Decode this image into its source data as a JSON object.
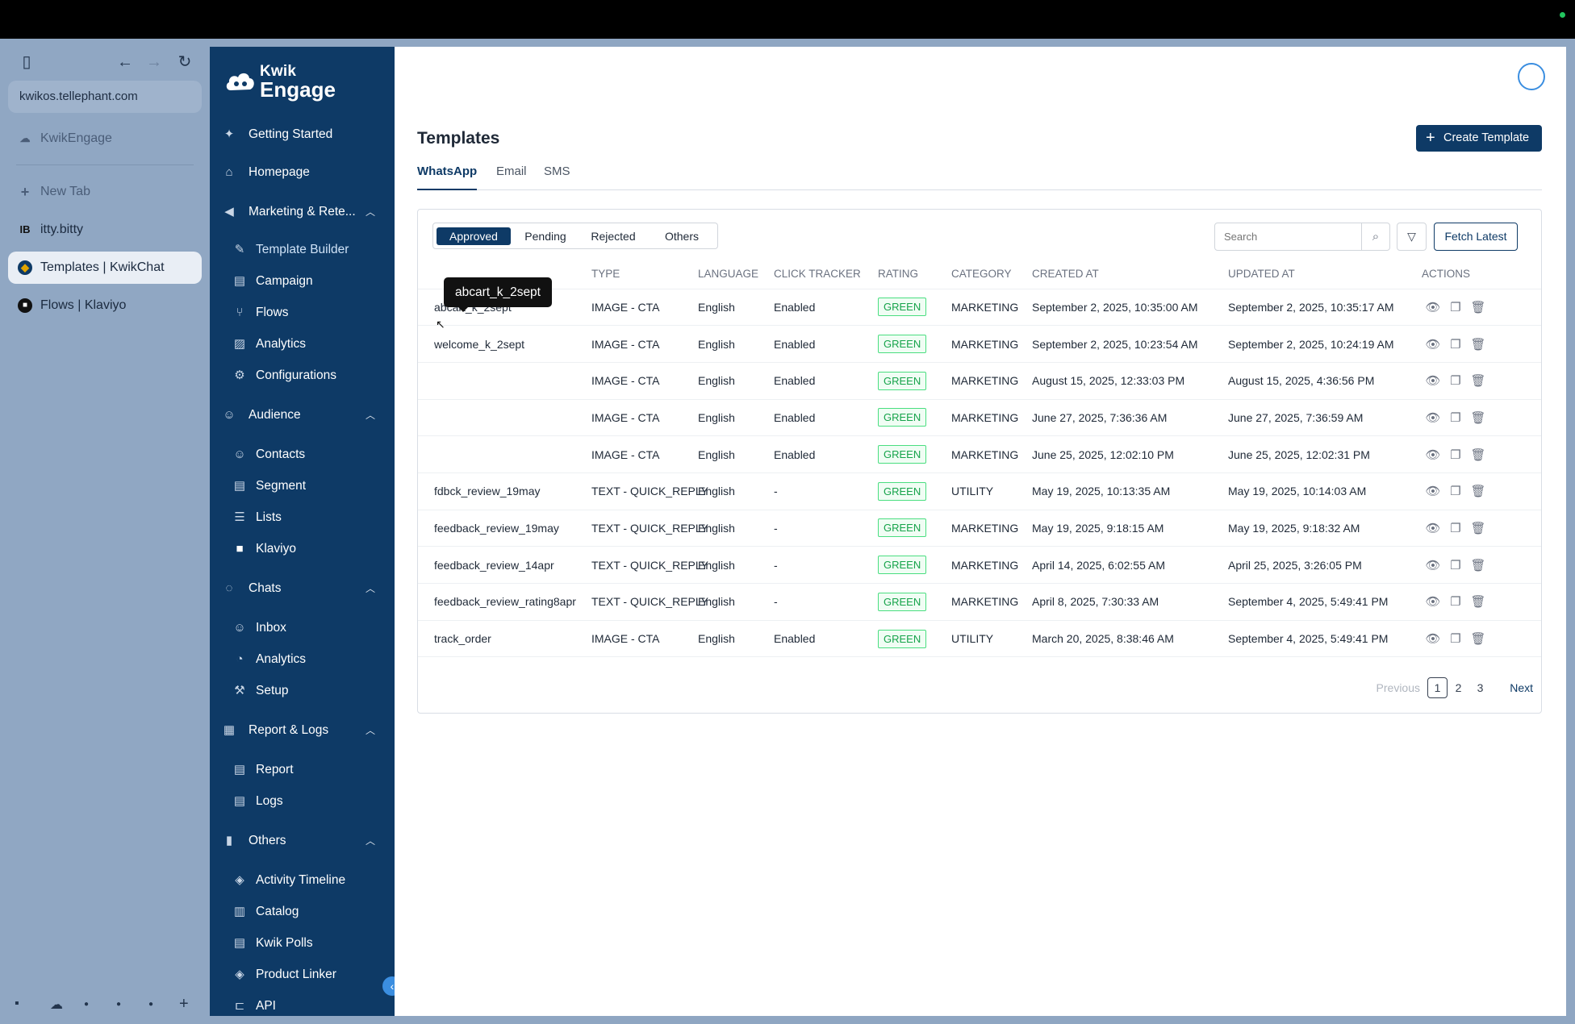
{
  "browser": {
    "url": "kwikos.tellephant.com",
    "pinned_tab": "KwikEngage",
    "new_tab": "New Tab",
    "tabs": [
      {
        "label": "itty.bitty"
      },
      {
        "label": "Templates | KwikChat"
      },
      {
        "label": "Flows | Klaviyo"
      }
    ]
  },
  "nav": {
    "logo_line1": "Kwik",
    "logo_line2": "Engage",
    "items": [
      {
        "label": "Getting Started",
        "icon": "rocket-icon"
      },
      {
        "label": "Homepage",
        "icon": "home-icon"
      },
      {
        "label": "Marketing & Rete...",
        "icon": "megaphone-icon"
      },
      {
        "label": "Template Builder",
        "icon": "brush-icon"
      },
      {
        "label": "Campaign",
        "icon": "document-icon"
      },
      {
        "label": "Flows",
        "icon": "flow-icon"
      },
      {
        "label": "Analytics",
        "icon": "chart-icon"
      },
      {
        "label": "Configurations",
        "icon": "settings-icon"
      },
      {
        "label": "Audience",
        "icon": "users-icon"
      },
      {
        "label": "Contacts",
        "icon": "user-icon"
      },
      {
        "label": "Segment",
        "icon": "document-icon"
      },
      {
        "label": "Lists",
        "icon": "list-icon"
      },
      {
        "label": "Klaviyo",
        "icon": "klaviyo-icon"
      },
      {
        "label": "Chats",
        "icon": "chat-icon"
      },
      {
        "label": "Inbox",
        "icon": "user-icon"
      },
      {
        "label": "Analytics",
        "icon": "pie-icon"
      },
      {
        "label": "Setup",
        "icon": "wrench-icon"
      },
      {
        "label": "Report & Logs",
        "icon": "building-icon"
      },
      {
        "label": "Report",
        "icon": "document-icon"
      },
      {
        "label": "Logs",
        "icon": "document-icon"
      },
      {
        "label": "Others",
        "icon": "bar-chart-icon"
      },
      {
        "label": "Activity Timeline",
        "icon": "tag-icon"
      },
      {
        "label": "Catalog",
        "icon": "book-icon"
      },
      {
        "label": "Kwik Polls",
        "icon": "document-icon"
      },
      {
        "label": "Product Linker",
        "icon": "tag-icon"
      },
      {
        "label": "API",
        "icon": "api-icon"
      }
    ]
  },
  "page": {
    "title": "Templates",
    "create_button": "Create Template",
    "tabs": [
      "WhatsApp",
      "Email",
      "SMS"
    ],
    "status_filters": [
      "Approved",
      "Pending",
      "Rejected",
      "Others"
    ],
    "search_placeholder": "Search",
    "fetch_button": "Fetch Latest",
    "tooltip": "abcart_k_2sept",
    "columns": [
      "",
      "TYPE",
      "LANGUAGE",
      "CLICK TRACKER",
      "RATING",
      "CATEGORY",
      "CREATED AT",
      "UPDATED AT",
      "ACTIONS"
    ],
    "rows": [
      {
        "name": "abcart_k_2sept",
        "type": "IMAGE - CTA",
        "language": "English",
        "tracker": "Enabled",
        "rating": "GREEN",
        "category": "MARKETING",
        "created": "September 2, 2025, 10:35:00 AM",
        "updated": "September 2, 2025, 10:35:17 AM"
      },
      {
        "name": "welcome_k_2sept",
        "type": "IMAGE - CTA",
        "language": "English",
        "tracker": "Enabled",
        "rating": "GREEN",
        "category": "MARKETING",
        "created": "September 2, 2025, 10:23:54 AM",
        "updated": "September 2, 2025, 10:24:19 AM"
      },
      {
        "name": "",
        "type": "IMAGE - CTA",
        "language": "English",
        "tracker": "Enabled",
        "rating": "GREEN",
        "category": "MARKETING",
        "created": "August 15, 2025, 12:33:03 PM",
        "updated": "August 15, 2025, 4:36:56 PM"
      },
      {
        "name": "",
        "type": "IMAGE - CTA",
        "language": "English",
        "tracker": "Enabled",
        "rating": "GREEN",
        "category": "MARKETING",
        "created": "June 27, 2025, 7:36:36 AM",
        "updated": "June 27, 2025, 7:36:59 AM"
      },
      {
        "name": "",
        "type": "IMAGE - CTA",
        "language": "English",
        "tracker": "Enabled",
        "rating": "GREEN",
        "category": "MARKETING",
        "created": "June 25, 2025, 12:02:10 PM",
        "updated": "June 25, 2025, 12:02:31 PM"
      },
      {
        "name": "fdbck_review_19may",
        "type": "TEXT - QUICK_REPLY",
        "language": "English",
        "tracker": "-",
        "rating": "GREEN",
        "category": "UTILITY",
        "created": "May 19, 2025, 10:13:35 AM",
        "updated": "May 19, 2025, 10:14:03 AM"
      },
      {
        "name": "feedback_review_19may",
        "type": "TEXT - QUICK_REPLY",
        "language": "English",
        "tracker": "-",
        "rating": "GREEN",
        "category": "MARKETING",
        "created": "May 19, 2025, 9:18:15 AM",
        "updated": "May 19, 2025, 9:18:32 AM"
      },
      {
        "name": "feedback_review_14apr",
        "type": "TEXT - QUICK_REPLY",
        "language": "English",
        "tracker": "-",
        "rating": "GREEN",
        "category": "MARKETING",
        "created": "April 14, 2025, 6:02:55 AM",
        "updated": "April 25, 2025, 3:26:05 PM"
      },
      {
        "name": "feedback_review_rating8apr",
        "type": "TEXT - QUICK_REPLY",
        "language": "English",
        "tracker": "-",
        "rating": "GREEN",
        "category": "MARKETING",
        "created": "April 8, 2025, 7:30:33 AM",
        "updated": "September 4, 2025, 5:49:41 PM"
      },
      {
        "name": "track_order",
        "type": "IMAGE - CTA",
        "language": "English",
        "tracker": "Enabled",
        "rating": "GREEN",
        "category": "UTILITY",
        "created": "March 20, 2025, 8:38:46 AM",
        "updated": "September 4, 2025, 5:49:41 PM"
      }
    ],
    "pagination": {
      "previous": "Previous",
      "pages": [
        "1",
        "2",
        "3"
      ],
      "next": "Next"
    }
  },
  "colors": {
    "brand": "#0e3a66",
    "accent": "#3b8ee0",
    "rating_green": "#16a34a"
  }
}
